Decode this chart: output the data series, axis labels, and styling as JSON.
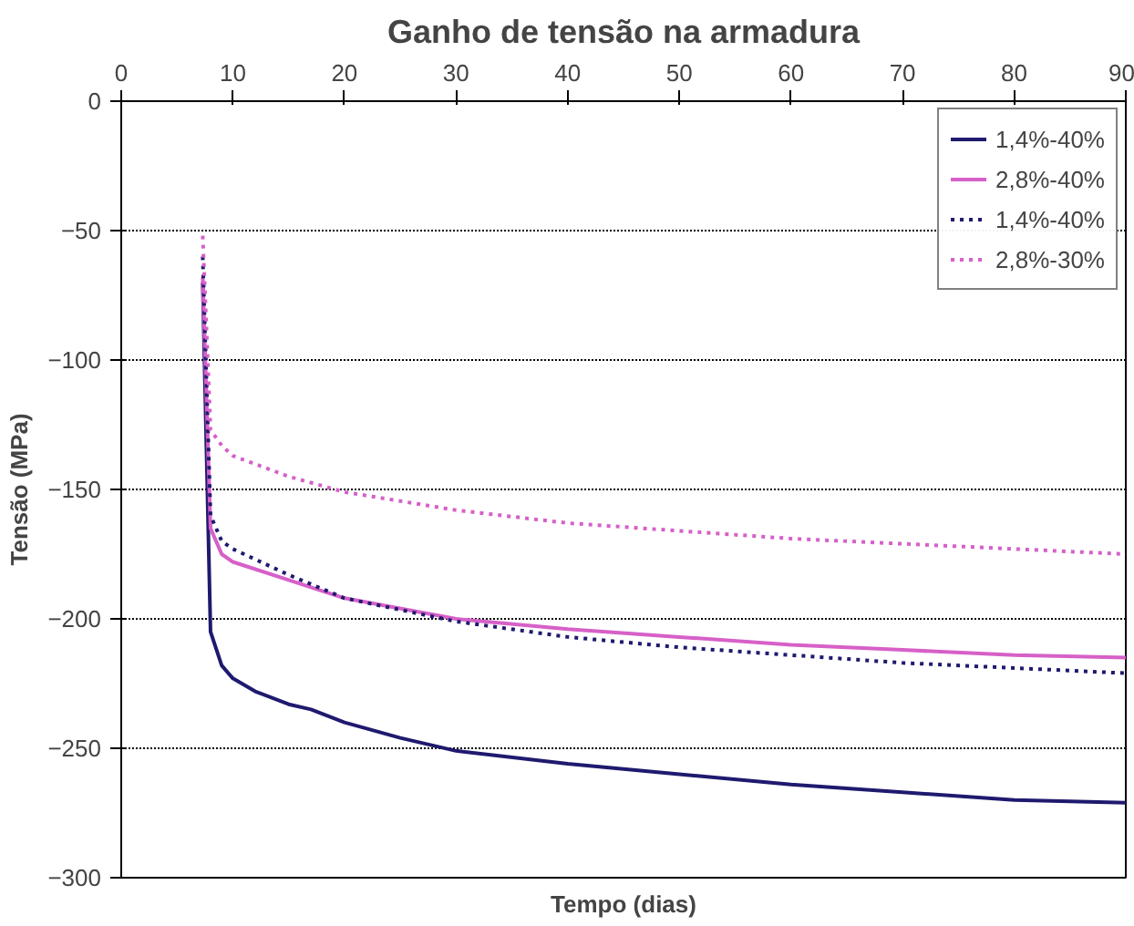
{
  "chart_data": {
    "type": "line",
    "title": "Ganho de tensão na armadura",
    "xlabel": "Tempo (dias)",
    "ylabel": "Tensão (MPa)",
    "xlim": [
      0,
      90
    ],
    "xticks": [
      0,
      10,
      20,
      30,
      40,
      50,
      60,
      70,
      80,
      90
    ],
    "ylim": [
      -300,
      0
    ],
    "yticks": [
      -300,
      -250,
      -200,
      -150,
      -100,
      -50,
      0
    ],
    "grid": "y",
    "legend": "top right",
    "series": [
      {
        "name": "1,4%-40%",
        "color": "#1f1a6e",
        "line_style": "solid",
        "x": [
          7.3,
          8,
          9,
          10,
          12,
          15,
          17,
          20,
          25,
          30,
          40,
          50,
          60,
          70,
          80,
          90
        ],
        "values": [
          -70,
          -205,
          -218,
          -223,
          -228,
          -233,
          -235,
          -240,
          -246,
          -251,
          -256,
          -260,
          -264,
          -267,
          -270,
          -271
        ]
      },
      {
        "name": "2,8%-40%",
        "color": "#d660c8",
        "line_style": "solid",
        "x": [
          7.3,
          8,
          9,
          10,
          15,
          20,
          30,
          40,
          50,
          60,
          70,
          80,
          90
        ],
        "values": [
          -68,
          -165,
          -175,
          -178,
          -185,
          -192,
          -200,
          -204,
          -207,
          -210,
          -212,
          -214,
          -215
        ]
      },
      {
        "name": "1,4%-40%",
        "color": "#1f1a6e",
        "line_style": "dotted",
        "x": [
          7.3,
          8,
          9,
          10,
          15,
          20,
          30,
          40,
          50,
          60,
          70,
          80,
          90
        ],
        "values": [
          -60,
          -160,
          -170,
          -173,
          -183,
          -192,
          -201,
          -207,
          -211,
          -214,
          -217,
          -219,
          -221
        ]
      },
      {
        "name": "2,8%-30%",
        "color": "#d660c8",
        "line_style": "dotted",
        "x": [
          7.3,
          8,
          9,
          10,
          15,
          20,
          30,
          40,
          50,
          60,
          70,
          80,
          90
        ],
        "values": [
          -52,
          -127,
          -133,
          -137,
          -145,
          -151,
          -158,
          -163,
          -166,
          -169,
          -171,
          -173,
          -175
        ]
      }
    ]
  }
}
